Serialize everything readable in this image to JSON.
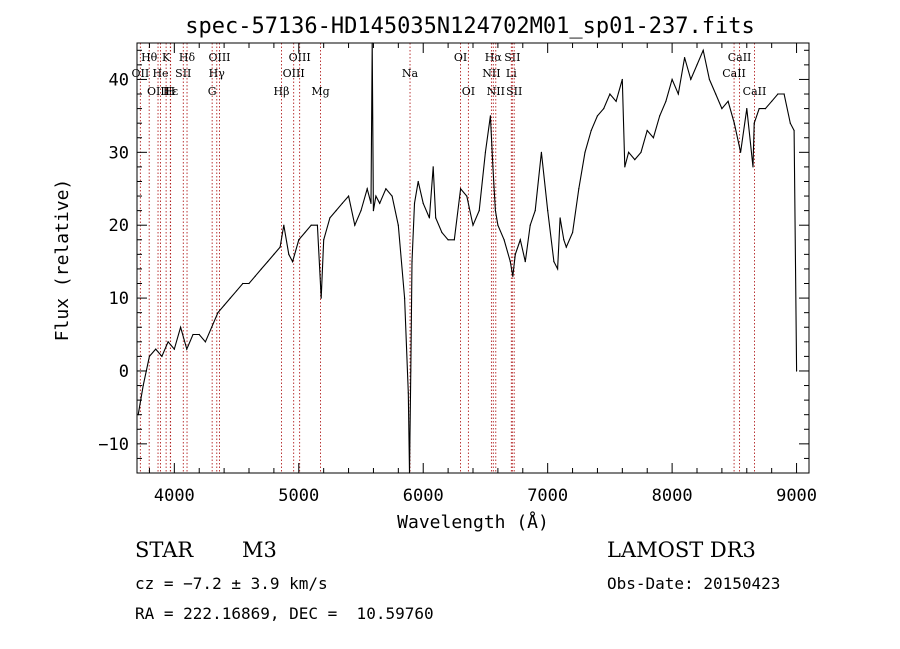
{
  "chart_data": {
    "type": "line",
    "title": "spec-57136-HD145035N124702M01_sp01-237.fits",
    "xlabel": "Wavelength (Å)",
    "ylabel": "Flux (relative)",
    "xlim": [
      3700,
      9100
    ],
    "ylim": [
      -14,
      45
    ],
    "xticks": [
      4000,
      5000,
      6000,
      7000,
      8000,
      9000
    ],
    "xtick_labels": [
      "4000",
      "5000",
      "6000",
      "7000",
      "8000",
      "9000"
    ],
    "yticks": [
      -10,
      0,
      10,
      20,
      30,
      40
    ],
    "ytick_labels": [
      "−10",
      "0",
      "10",
      "20",
      "30",
      "40"
    ],
    "series": [
      {
        "name": "flux",
        "x": [
          3710,
          3750,
          3800,
          3850,
          3900,
          3950,
          4000,
          4050,
          4100,
          4150,
          4200,
          4250,
          4300,
          4350,
          4400,
          4450,
          4500,
          4550,
          4600,
          4650,
          4700,
          4750,
          4800,
          4850,
          4880,
          4920,
          4950,
          5000,
          5050,
          5100,
          5150,
          5180,
          5200,
          5250,
          5300,
          5350,
          5400,
          5450,
          5500,
          5550,
          5580,
          5590,
          5600,
          5620,
          5650,
          5700,
          5750,
          5800,
          5850,
          5880,
          5890,
          5900,
          5910,
          5930,
          5960,
          6000,
          6050,
          6080,
          6100,
          6150,
          6200,
          6250,
          6300,
          6350,
          6400,
          6450,
          6500,
          6540,
          6560,
          6580,
          6600,
          6650,
          6700,
          6720,
          6740,
          6780,
          6820,
          6860,
          6900,
          6950,
          7000,
          7050,
          7080,
          7100,
          7130,
          7150,
          7200,
          7250,
          7300,
          7350,
          7400,
          7450,
          7500,
          7550,
          7600,
          7620,
          7650,
          7700,
          7750,
          7800,
          7850,
          7900,
          7950,
          8000,
          8050,
          8100,
          8150,
          8200,
          8250,
          8300,
          8350,
          8400,
          8450,
          8500,
          8550,
          8600,
          8650,
          8660,
          8700,
          8750,
          8800,
          8850,
          8900,
          8950,
          8980,
          9000
        ],
        "y": [
          -6,
          -2,
          2,
          3,
          2,
          4,
          3,
          6,
          3,
          5,
          5,
          4,
          6,
          8,
          9,
          10,
          11,
          12,
          12,
          13,
          14,
          15,
          16,
          17,
          20,
          16,
          15,
          18,
          19,
          20,
          20,
          10,
          18,
          21,
          22,
          23,
          24,
          20,
          22,
          25,
          23,
          45,
          22,
          24,
          23,
          25,
          24,
          20,
          10,
          -3,
          -14,
          0,
          15,
          23,
          26,
          23,
          21,
          28,
          21,
          19,
          18,
          18,
          25,
          24,
          20,
          22,
          30,
          35,
          28,
          22,
          20,
          18,
          15,
          13,
          16,
          18,
          15,
          20,
          22,
          30,
          22,
          15,
          14,
          21,
          18,
          17,
          19,
          25,
          30,
          33,
          35,
          36,
          38,
          37,
          40,
          28,
          30,
          29,
          30,
          33,
          32,
          35,
          37,
          40,
          38,
          43,
          40,
          42,
          44,
          40,
          38,
          36,
          37,
          34,
          30,
          36,
          28,
          34,
          36,
          36,
          37,
          38,
          38,
          34,
          33,
          0
        ]
      }
    ],
    "spectral_lines": [
      {
        "label": "Hθ",
        "wavelength": 3798,
        "row": 1
      },
      {
        "label": "OII",
        "wavelength": 3727,
        "row": 2
      },
      {
        "label": "OIII",
        "wavelength": 3869,
        "row": 3
      },
      {
        "label": "He",
        "wavelength": 3889,
        "row": 2
      },
      {
        "label": "K",
        "wavelength": 3934,
        "row": 1
      },
      {
        "label": "Hε",
        "wavelength": 3970,
        "row": 3
      },
      {
        "label": "H",
        "wavelength": 3968,
        "row": 3
      },
      {
        "label": "SII",
        "wavelength": 4072,
        "row": 2
      },
      {
        "label": "Hδ",
        "wavelength": 4102,
        "row": 1
      },
      {
        "label": "OIII",
        "wavelength": 4363,
        "row": 1
      },
      {
        "label": "Hγ",
        "wavelength": 4341,
        "row": 2
      },
      {
        "label": "G",
        "wavelength": 4304,
        "row": 3
      },
      {
        "label": "OIII",
        "wavelength": 5007,
        "row": 1
      },
      {
        "label": "OIII",
        "wavelength": 4959,
        "row": 2
      },
      {
        "label": "Hβ",
        "wavelength": 4861,
        "row": 3
      },
      {
        "label": "Mg",
        "wavelength": 5175,
        "row": 3
      },
      {
        "label": "Na",
        "wavelength": 5894,
        "row": 2
      },
      {
        "label": "OI",
        "wavelength": 6300,
        "row": 1
      },
      {
        "label": "OI",
        "wavelength": 6363,
        "row": 3
      },
      {
        "label": "Hα",
        "wavelength": 6563,
        "row": 1
      },
      {
        "label": "SII",
        "wavelength": 6716,
        "row": 1
      },
      {
        "label": "NII",
        "wavelength": 6548,
        "row": 2
      },
      {
        "label": "Li",
        "wavelength": 6708,
        "row": 2
      },
      {
        "label": "NII",
        "wavelength": 6583,
        "row": 3
      },
      {
        "label": "SII",
        "wavelength": 6731,
        "row": 3
      },
      {
        "label": "CaII",
        "wavelength": 8542,
        "row": 1
      },
      {
        "label": "CaII",
        "wavelength": 8498,
        "row": 2
      },
      {
        "label": "CaII",
        "wavelength": 8662,
        "row": 3
      }
    ]
  },
  "info": {
    "class": "STAR",
    "subclass": "M3",
    "cz": "cz = −7.2 ± 3.9 km/s",
    "coords": "RA = 222.16869, DEC =  10.59760",
    "survey": "LAMOST DR3",
    "obs_date": "Obs-Date: 20150423"
  },
  "colors": {
    "line": "#b22222",
    "spectrum": "#000000"
  }
}
